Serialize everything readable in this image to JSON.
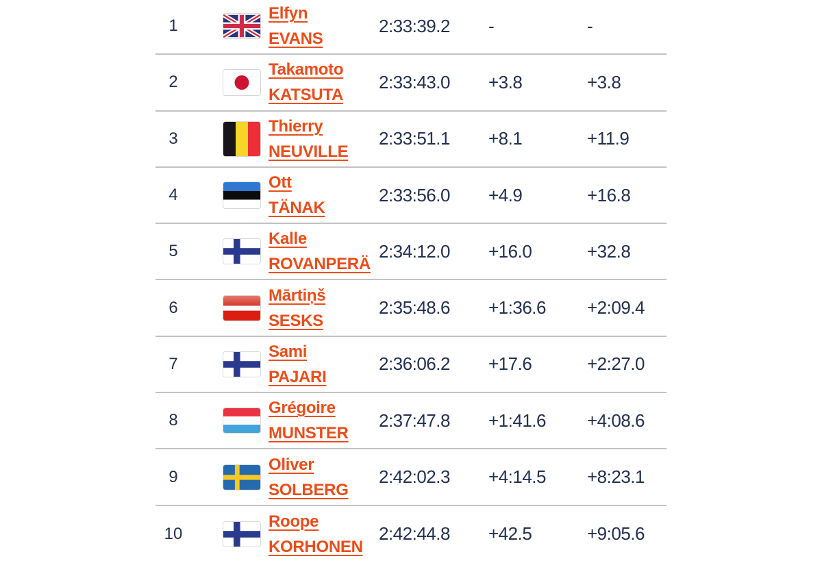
{
  "table": {
    "rows": [
      {
        "position": "1",
        "country": "gb",
        "first_name": "Elfyn",
        "last_name": "EVANS",
        "time": "2:33:39.2",
        "gap_prev": "-",
        "gap_leader": "-"
      },
      {
        "position": "2",
        "country": "jp",
        "first_name": "Takamoto",
        "last_name": "KATSUTA",
        "time": "2:33:43.0",
        "gap_prev": "+3.8",
        "gap_leader": "+3.8"
      },
      {
        "position": "3",
        "country": "be",
        "first_name": "Thierry",
        "last_name": "NEUVILLE",
        "time": "2:33:51.1",
        "gap_prev": "+8.1",
        "gap_leader": "+11.9"
      },
      {
        "position": "4",
        "country": "ee",
        "first_name": "Ott",
        "last_name": "TÄNAK",
        "time": "2:33:56.0",
        "gap_prev": "+4.9",
        "gap_leader": "+16.8"
      },
      {
        "position": "5",
        "country": "fi",
        "first_name": "Kalle",
        "last_name": "ROVANPERÄ",
        "time": "2:34:12.0",
        "gap_prev": "+16.0",
        "gap_leader": "+32.8"
      },
      {
        "position": "6",
        "country": "lv",
        "first_name": "Mārtiņš",
        "last_name": "SESKS",
        "time": "2:35:48.6",
        "gap_prev": "+1:36.6",
        "gap_leader": "+2:09.4"
      },
      {
        "position": "7",
        "country": "fi",
        "first_name": "Sami",
        "last_name": "PAJARI",
        "time": "2:36:06.2",
        "gap_prev": "+17.6",
        "gap_leader": "+2:27.0"
      },
      {
        "position": "8",
        "country": "lu",
        "first_name": "Grégoire",
        "last_name": "MUNSTER",
        "time": "2:37:47.8",
        "gap_prev": "+1:41.6",
        "gap_leader": "+4:08.6"
      },
      {
        "position": "9",
        "country": "se",
        "first_name": "Oliver",
        "last_name": "SOLBERG",
        "time": "2:42:02.3",
        "gap_prev": "+4:14.5",
        "gap_leader": "+8:23.1"
      },
      {
        "position": "10",
        "country": "fi",
        "first_name": "Roope",
        "last_name": "KORHONEN",
        "time": "2:42:44.8",
        "gap_prev": "+42.5",
        "gap_leader": "+9:05.6"
      }
    ]
  },
  "colors": {
    "driver_link": "#e84e1b",
    "time_text": "#233150",
    "row_divider": "#c2c2c2"
  }
}
